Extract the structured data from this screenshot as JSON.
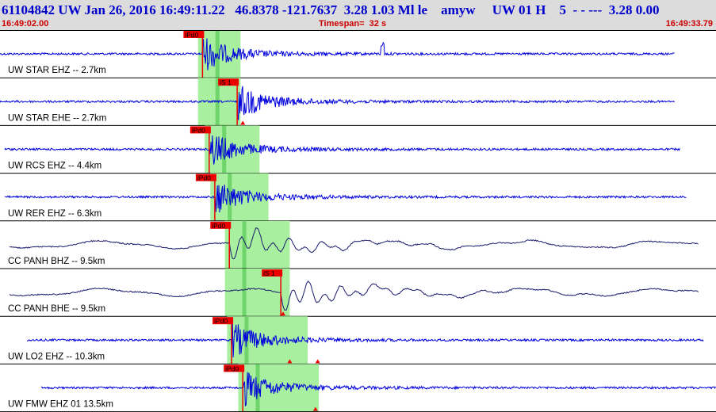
{
  "header": {
    "title": "61104842 UW Jan 26, 2016 16:49:11.22   46.8378 -121.7637  3.28 1.03 Ml le    amyw     UW 01 H    5  - - ---  3.28 0.00",
    "start_time": "16:49:02.00",
    "timespan_label": "Timespan=  32 s",
    "end_time": "16:49:33.79"
  },
  "colors": {
    "header_bg": "#dcdcdc",
    "title": "#0000cc",
    "time_text": "#cc0000",
    "trace_blue": "#0000dd",
    "trace_navy": "#1a1a6e",
    "pick_red": "#ee0000",
    "window_green": "#a8f0a0",
    "divider": "#000000"
  },
  "chart_data": {
    "type": "line",
    "x_range_s": [
      0,
      32
    ],
    "traces": [
      {
        "label": "UW STAR EHZ -- 2.7km",
        "pick": "iPd0",
        "pick_s": 9.05,
        "window_s": [
          8.85,
          10.75
        ],
        "color": "blue",
        "markers_s": [],
        "extra_spike_s": 17.1
      },
      {
        "label": "UW STAR EHE -- 2.7km",
        "pick": "iS 1",
        "pick_s": 10.6,
        "window_s": [
          8.85,
          10.75
        ],
        "color": "blue",
        "markers_s": [
          10.85
        ],
        "extra_spike_s": null
      },
      {
        "label": "UW RCS EHZ -- 4.4km",
        "pick": "iPd0",
        "pick_s": 9.35,
        "window_s": [
          9.15,
          11.6
        ],
        "color": "blue",
        "markers_s": [],
        "extra_spike_s": null
      },
      {
        "label": "UW RER EHZ -- 6.3km",
        "pick": "iPd0",
        "pick_s": 9.6,
        "window_s": [
          9.4,
          12.0
        ],
        "color": "blue",
        "markers_s": [],
        "extra_spike_s": null
      },
      {
        "label": "CC PANH BHZ -- 9.5km",
        "pick": "iPd0",
        "pick_s": 10.25,
        "window_s": [
          10.05,
          12.95
        ],
        "color": "navy",
        "markers_s": [],
        "extra_spike_s": null
      },
      {
        "label": "CC PANH BHE -- 9.5km",
        "pick": "iS 1",
        "pick_s": 12.55,
        "window_s": [
          10.05,
          12.95
        ],
        "color": "navy",
        "markers_s": [
          12.65
        ],
        "extra_spike_s": null
      },
      {
        "label": "UW LO2 EHZ -- 10.3km",
        "pick": "iPd0",
        "pick_s": 10.35,
        "window_s": [
          10.15,
          13.75
        ],
        "color": "blue",
        "markers_s": [
          12.95,
          14.2
        ],
        "extra_spike_s": null
      },
      {
        "label": "UW FMW EHZ 01 13.5km",
        "pick": "iPd0",
        "pick_s": 10.85,
        "window_s": [
          10.65,
          14.25
        ],
        "color": "blue",
        "markers_s": [
          14.1
        ],
        "extra_spike_s": null
      }
    ]
  }
}
